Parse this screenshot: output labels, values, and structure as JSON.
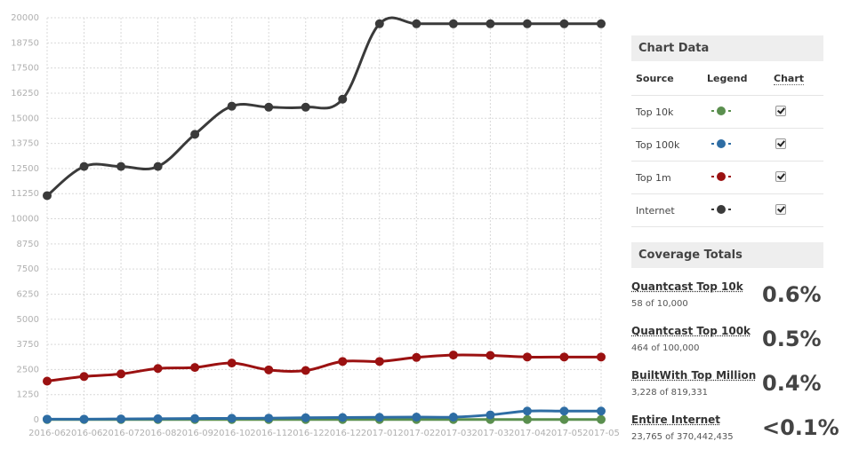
{
  "chart_data": {
    "type": "line",
    "title": "",
    "xlabel": "",
    "ylabel": "",
    "ylim": [
      0,
      20000
    ],
    "yticks": [
      0,
      1250,
      2500,
      3750,
      5000,
      6250,
      7500,
      8750,
      10000,
      11250,
      12500,
      13750,
      15000,
      16250,
      17500,
      18750,
      20000
    ],
    "x_tick_labels": [
      "2016-06",
      "2016-06",
      "2016-07",
      "2016-08",
      "2016-09",
      "2016-10",
      "2016-11",
      "2016-12",
      "2016-12",
      "2017-01",
      "2017-02",
      "2017-03",
      "2017-03",
      "2017-04",
      "2017-05",
      "2017-05"
    ],
    "grid": true,
    "series": [
      {
        "name": "Internet",
        "color": "#3a3a3a",
        "values": [
          11150,
          12600,
          12600,
          12600,
          14200,
          15600,
          15550,
          15550,
          15950,
          19700,
          19700,
          19700,
          19700,
          19700,
          19700,
          19700
        ]
      },
      {
        "name": "Top 1m",
        "color": "#9b1111",
        "values": [
          1920,
          2150,
          2280,
          2550,
          2600,
          2820,
          2480,
          2450,
          2900,
          2900,
          3100,
          3220,
          3200,
          3120,
          3120,
          3120
        ]
      },
      {
        "name": "Top 100k",
        "color": "#2e6da4",
        "values": [
          30,
          30,
          40,
          50,
          60,
          70,
          80,
          100,
          110,
          120,
          130,
          130,
          240,
          430,
          430,
          430
        ]
      },
      {
        "name": "Top 10k",
        "color": "#5a8f4e",
        "values": [
          10,
          10,
          10,
          10,
          10,
          10,
          10,
          10,
          10,
          10,
          10,
          10,
          10,
          10,
          10,
          10
        ]
      }
    ]
  },
  "chart_panel": {
    "title": "Chart Data",
    "headers": {
      "source": "Source",
      "legend": "Legend",
      "chart": "Chart"
    },
    "rows": [
      {
        "label": "Top 10k",
        "color": "#5a8f4e",
        "checked": true
      },
      {
        "label": "Top 100k",
        "color": "#2e6da4",
        "checked": true
      },
      {
        "label": "Top 1m",
        "color": "#9b1111",
        "checked": true
      },
      {
        "label": "Internet",
        "color": "#3a3a3a",
        "checked": true
      }
    ]
  },
  "coverage": {
    "title": "Coverage Totals",
    "items": [
      {
        "name": "Quantcast Top 10k",
        "sub": "58 of 10,000",
        "pct": "0.6%"
      },
      {
        "name": "Quantcast Top 100k",
        "sub": "464 of 100,000",
        "pct": "0.5%"
      },
      {
        "name": "BuiltWith Top Million",
        "sub": "3,228 of 819,331",
        "pct": "0.4%"
      },
      {
        "name": "Entire Internet",
        "sub": "23,765 of 370,442,435",
        "pct": "<0.1%"
      }
    ]
  }
}
